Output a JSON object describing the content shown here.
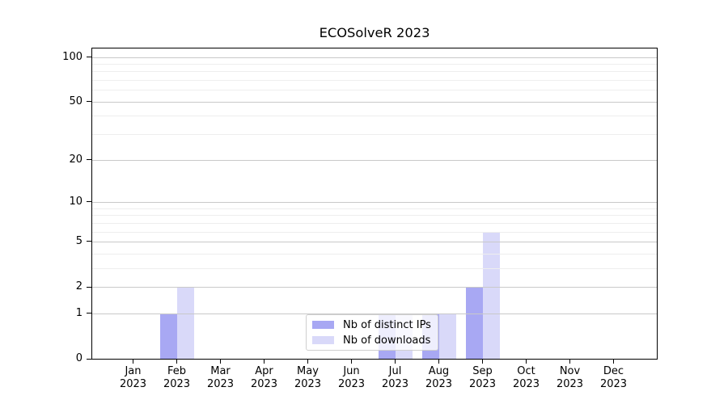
{
  "chart_data": {
    "type": "bar",
    "title": "ECOSolveR 2023",
    "categories": [
      "Jan 2023",
      "Feb 2023",
      "Mar 2023",
      "Apr 2023",
      "May 2023",
      "Jun 2023",
      "Jul 2023",
      "Aug 2023",
      "Sep 2023",
      "Oct 2023",
      "Nov 2023",
      "Dec 2023"
    ],
    "x_tick_months": [
      "Jan",
      "Feb",
      "Mar",
      "Apr",
      "May",
      "Jun",
      "Jul",
      "Aug",
      "Sep",
      "Oct",
      "Nov",
      "Dec"
    ],
    "x_tick_year": "2023",
    "series": [
      {
        "name": "Nb of distinct IPs",
        "color": "#a8a8f3",
        "values": [
          0,
          1,
          0,
          0,
          0,
          0,
          1,
          1,
          2,
          0,
          0,
          0
        ]
      },
      {
        "name": "Nb of downloads",
        "color": "#d9d9f9",
        "values": [
          0,
          2,
          0,
          0,
          0,
          0,
          1,
          1,
          6,
          0,
          0,
          0
        ]
      }
    ],
    "yscale": "log1p",
    "ylim": [
      0,
      114
    ],
    "yticks": [
      0,
      1,
      2,
      5,
      10,
      20,
      50,
      100
    ],
    "yticks_minor": [
      3,
      4,
      6,
      7,
      8,
      9,
      30,
      40,
      60,
      70,
      80,
      90
    ],
    "grid": true,
    "legend": {
      "location": "lower center (inside plot)",
      "entries": [
        "Nb of distinct IPs",
        "Nb of downloads"
      ]
    },
    "colors": {
      "major_grid": "#c9c9c9",
      "minor_grid": "#eeeeee",
      "axis": "#000000",
      "text": "#000000"
    }
  }
}
